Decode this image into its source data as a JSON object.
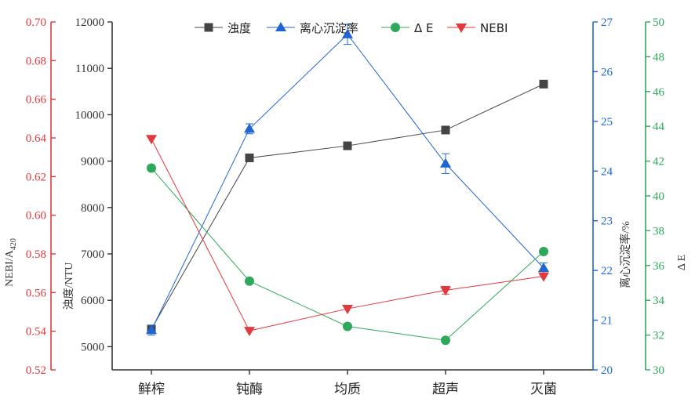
{
  "chart_data": {
    "type": "line",
    "categories": [
      "鲜榨",
      "钝酶",
      "均质",
      "超声",
      "灭菌"
    ],
    "series": [
      {
        "name": "浊度",
        "axis": "turbidity",
        "marker": "square",
        "color": "#444444",
        "values": [
          5380,
          9070,
          9330,
          9670,
          10660
        ],
        "errors": [
          0,
          0,
          0,
          0,
          0
        ]
      },
      {
        "name": "离心沉淀率",
        "axis": "sediment",
        "marker": "triangle-up",
        "color": "#1f66d4",
        "values": [
          20.8,
          24.85,
          26.75,
          24.15,
          22.05
        ],
        "errors": [
          0.1,
          0.1,
          0.2,
          0.2,
          0.1
        ]
      },
      {
        "name": "Δ E",
        "axis": "deltaE",
        "marker": "circle",
        "color": "#2ea85a",
        "values": [
          41.6,
          35.1,
          32.5,
          31.7,
          36.8
        ],
        "errors": [
          0,
          0,
          0,
          0,
          0
        ]
      },
      {
        "name": "NEBI",
        "axis": "nebi",
        "marker": "triangle-down",
        "color": "#e0393e",
        "values": [
          0.6395,
          0.5402,
          0.5516,
          0.5612,
          0.5684
        ],
        "errors": [
          0,
          0,
          0,
          0.002,
          0
        ]
      }
    ],
    "axes": {
      "nebi": {
        "label_main": "NEBI/A",
        "label_sub": "420",
        "ylim": [
          0.52,
          0.7
        ],
        "ticks": [
          "0.52",
          "0.54",
          "0.56",
          "0.58",
          "0.60",
          "0.62",
          "0.64",
          "0.66",
          "0.68",
          "0.70"
        ],
        "color": "#e0393e"
      },
      "turbidity": {
        "label": "浊度/NTU",
        "ylim": [
          4500,
          12000
        ],
        "ticks": [
          "5000",
          "6000",
          "7000",
          "8000",
          "9000",
          "10000",
          "11000",
          "12000"
        ],
        "color": "#333333"
      },
      "sediment": {
        "label": "离心沉淀率/%",
        "ylim": [
          20,
          27
        ],
        "ticks": [
          "20",
          "21",
          "22",
          "23",
          "24",
          "25",
          "26",
          "27"
        ],
        "color": "#1f66d4"
      },
      "deltaE": {
        "label": "Δ E",
        "ylim": [
          30,
          50
        ],
        "ticks": [
          "30",
          "32",
          "34",
          "36",
          "38",
          "40",
          "42",
          "44",
          "46",
          "48",
          "50"
        ],
        "color": "#2ea85a"
      }
    },
    "legend": {
      "placement": "top-center"
    },
    "grid": false
  }
}
